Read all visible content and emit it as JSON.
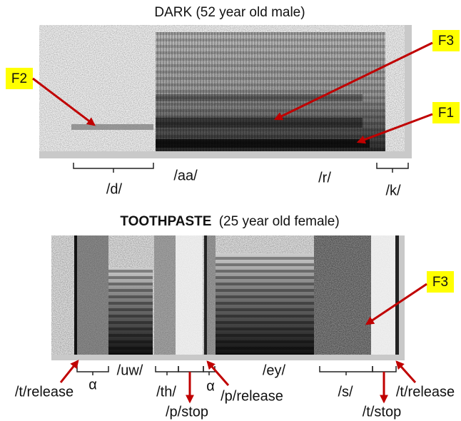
{
  "panels": [
    {
      "title": "DARK (52 year old male)",
      "formant_labels": [
        "F2",
        "F3",
        "F1"
      ],
      "segments": [
        "/d/",
        "/aa/",
        "/r/",
        "/k/"
      ]
    },
    {
      "title_bold": "TOOTHPASTE",
      "title_rest": "(25 year old female)",
      "formant_labels": [
        "F3"
      ],
      "segments": [
        "/t/release",
        "α",
        "/uw/",
        "/th/",
        "/p/stop",
        "α",
        "/p/release",
        "/ey/",
        "/s/",
        "/t/stop",
        "/t/release"
      ]
    }
  ]
}
